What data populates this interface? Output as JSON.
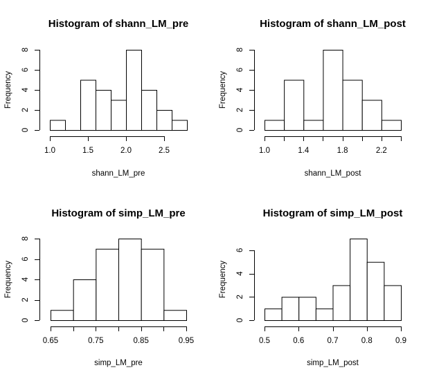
{
  "chart_data": [
    {
      "type": "bar",
      "title": "Histogram of shann_LM_pre",
      "xlabel": "shann_LM_pre",
      "ylabel": "Frequency",
      "bin_edges": [
        1.0,
        1.2,
        1.4,
        1.6,
        1.8,
        2.0,
        2.2,
        2.4,
        2.6,
        2.8
      ],
      "values": [
        1,
        0,
        5,
        4,
        3,
        8,
        4,
        2,
        1
      ],
      "xticks": [
        1.0,
        1.5,
        2.0,
        2.5
      ],
      "xtick_labels": [
        "1.0",
        "1.5",
        "2.0",
        "2.5"
      ],
      "yticks": [
        0,
        2,
        4,
        6,
        8
      ],
      "ytick_labels": [
        "0",
        "2",
        "4",
        "6",
        "8"
      ],
      "xlim": [
        1.0,
        2.8
      ],
      "ylim": [
        0,
        8
      ]
    },
    {
      "type": "bar",
      "title": "Histogram of shann_LM_post",
      "xlabel": "shann_LM_post",
      "ylabel": "Frequency",
      "bin_edges": [
        1.0,
        1.2,
        1.4,
        1.6,
        1.8,
        2.0,
        2.2,
        2.4
      ],
      "values": [
        1,
        5,
        1,
        8,
        5,
        3,
        1
      ],
      "xticks": [
        1.0,
        1.2,
        1.4,
        1.6,
        1.8,
        2.0,
        2.2,
        2.4
      ],
      "xtick_labels": [
        "1.0",
        "",
        "1.4",
        "",
        "1.8",
        "",
        "2.2",
        ""
      ],
      "yticks": [
        0,
        2,
        4,
        6,
        8
      ],
      "ytick_labels": [
        "0",
        "2",
        "4",
        "6",
        "8"
      ],
      "xlim": [
        1.0,
        2.4
      ],
      "ylim": [
        0,
        8
      ]
    },
    {
      "type": "bar",
      "title": "Histogram of simp_LM_pre",
      "xlabel": "simp_LM_pre",
      "ylabel": "Frequency",
      "bin_edges": [
        0.65,
        0.7,
        0.75,
        0.8,
        0.85,
        0.9,
        0.95
      ],
      "values": [
        1,
        4,
        7,
        8,
        7,
        1
      ],
      "xticks": [
        0.65,
        0.7,
        0.75,
        0.8,
        0.85,
        0.9,
        0.95
      ],
      "xtick_labels": [
        "0.65",
        "",
        "0.75",
        "",
        "0.85",
        "",
        "0.95"
      ],
      "yticks": [
        0,
        2,
        4,
        6,
        8
      ],
      "ytick_labels": [
        "0",
        "2",
        "4",
        "6",
        "8"
      ],
      "xlim": [
        0.65,
        0.95
      ],
      "ylim": [
        0,
        8
      ]
    },
    {
      "type": "bar",
      "title": "Histogram of simp_LM_post",
      "xlabel": "simp_LM_post",
      "ylabel": "Frequency",
      "bin_edges": [
        0.5,
        0.55,
        0.6,
        0.65,
        0.7,
        0.75,
        0.8,
        0.85,
        0.9
      ],
      "values": [
        1,
        2,
        2,
        1,
        3,
        7,
        5,
        3
      ],
      "xticks": [
        0.5,
        0.6,
        0.7,
        0.8,
        0.9
      ],
      "xtick_labels": [
        "0.5",
        "0.6",
        "0.7",
        "0.8",
        "0.9"
      ],
      "yticks": [
        0,
        2,
        4,
        6
      ],
      "ytick_labels": [
        "0",
        "2",
        "4",
        "6"
      ],
      "xlim": [
        0.5,
        0.9
      ],
      "ylim": [
        0,
        7
      ]
    }
  ]
}
